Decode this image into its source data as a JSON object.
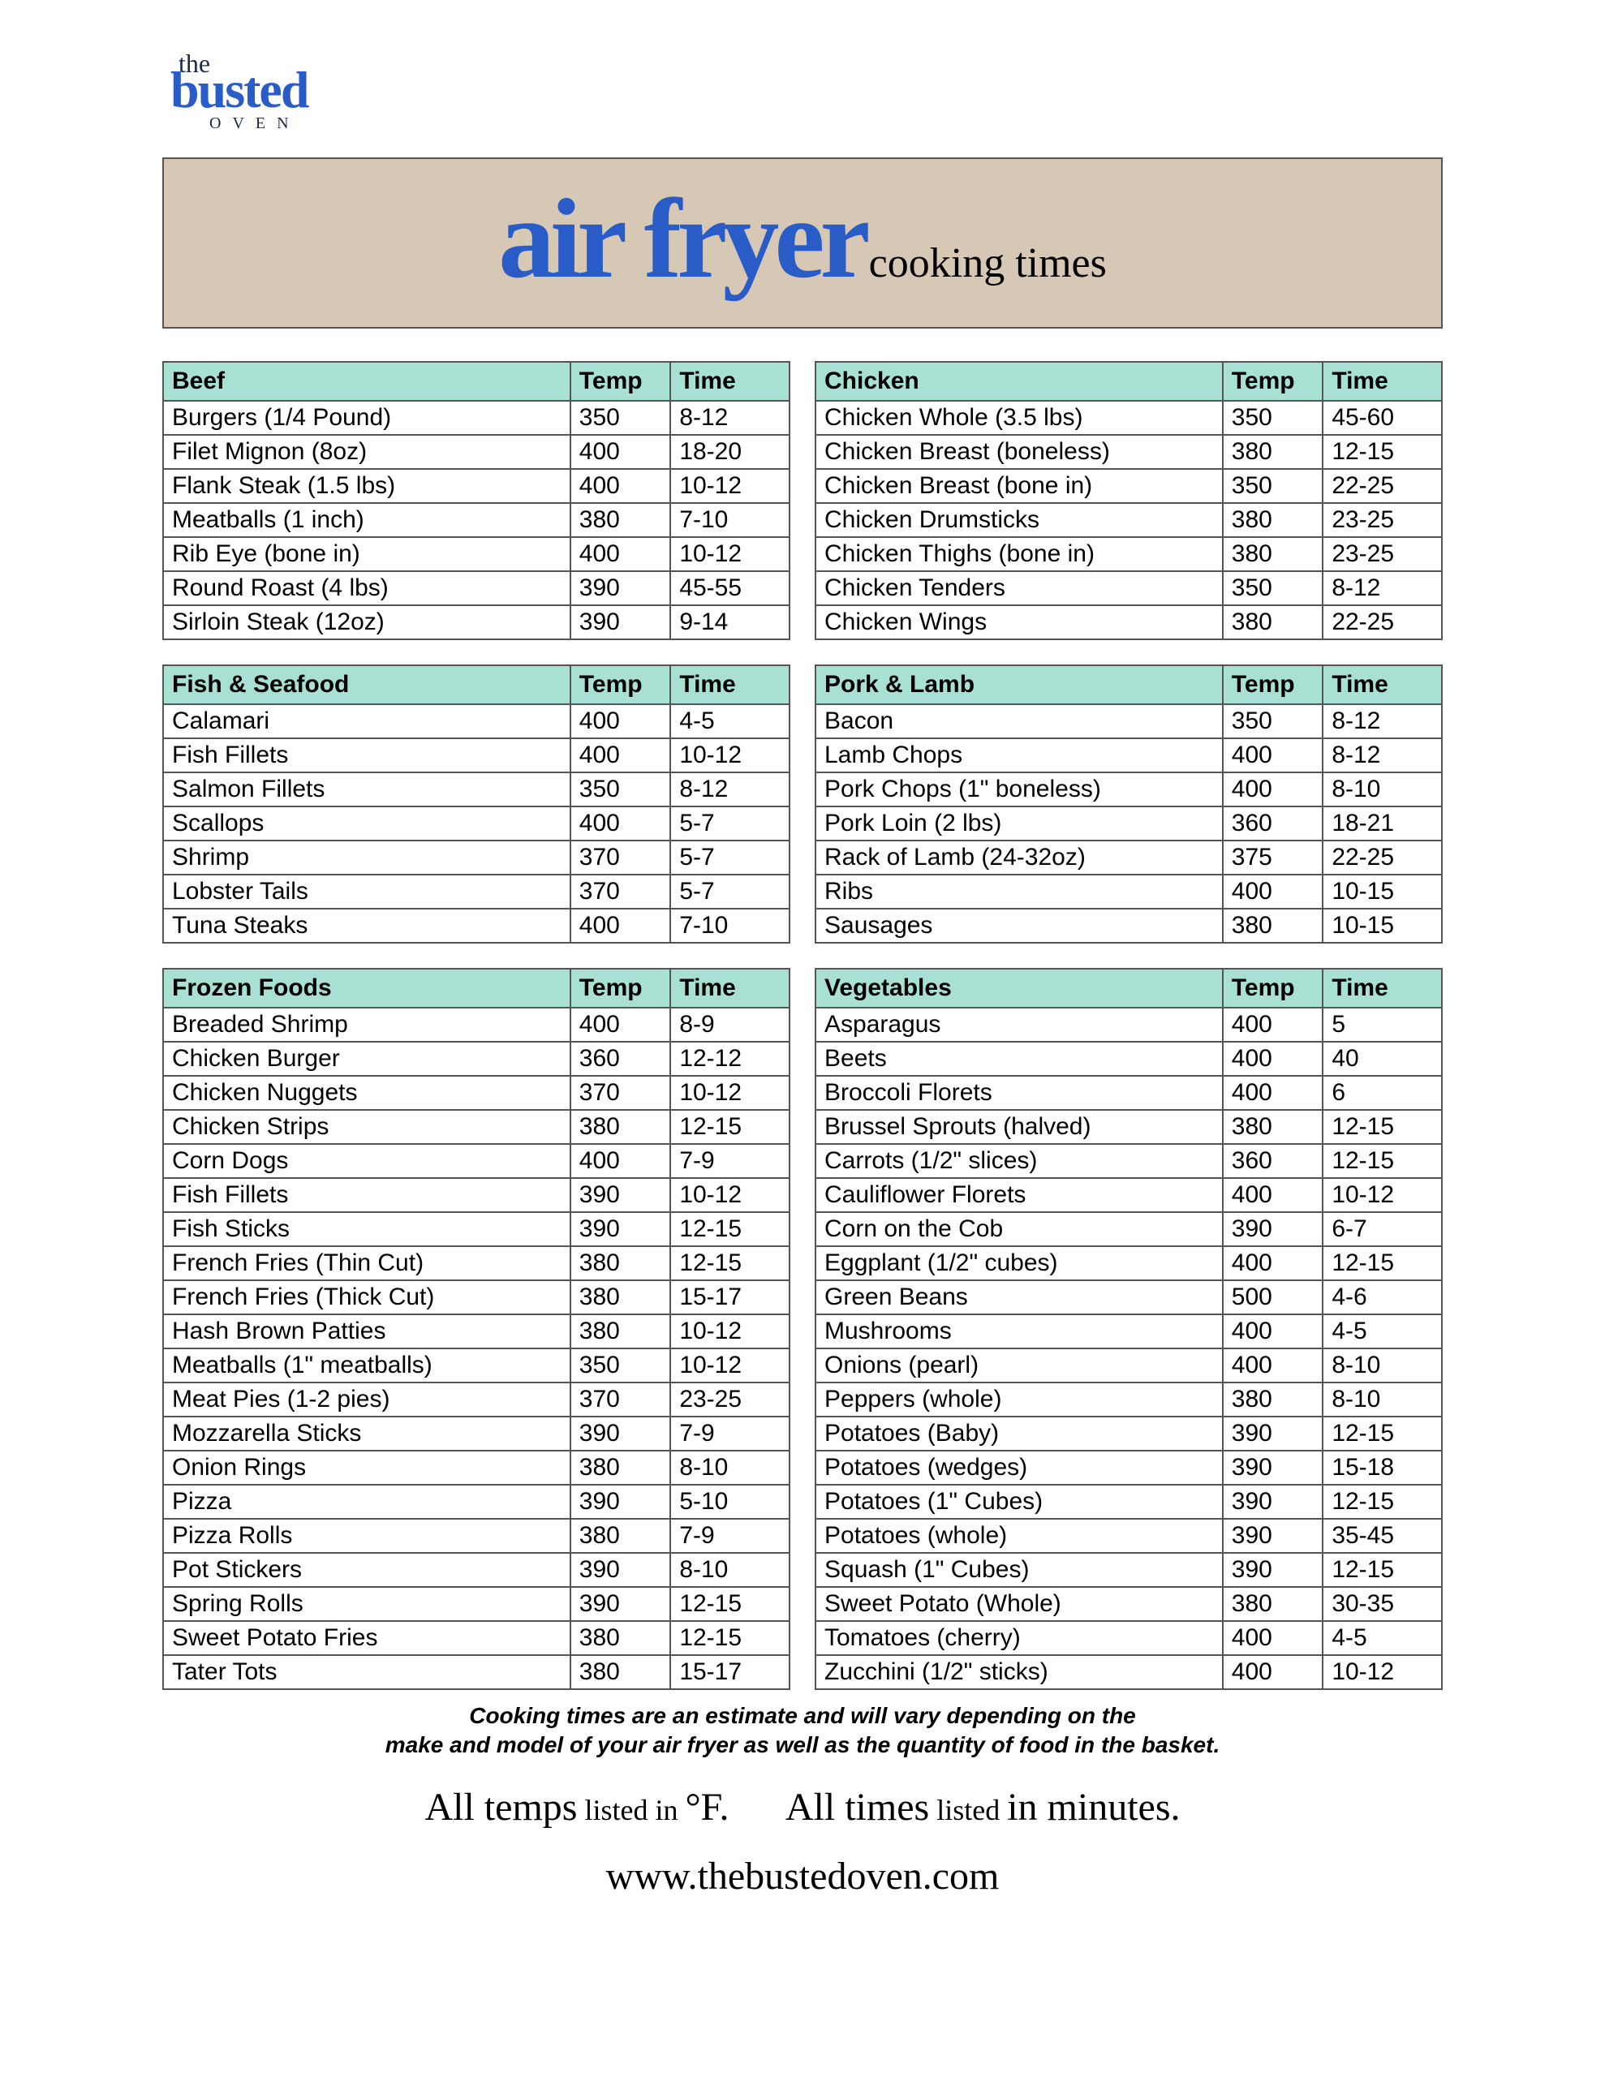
{
  "logo": {
    "the": "the",
    "busted": "busted",
    "oven": "OVEN"
  },
  "title": {
    "main": "air fryer",
    "sub": "cooking times"
  },
  "headers": {
    "temp": "Temp",
    "time": "Time"
  },
  "tables": [
    {
      "category": "Beef",
      "rows": [
        {
          "item": "Burgers (1/4 Pound)",
          "temp": "350",
          "time": "8-12"
        },
        {
          "item": "Filet Mignon (8oz)",
          "temp": "400",
          "time": "18-20"
        },
        {
          "item": "Flank Steak (1.5 lbs)",
          "temp": "400",
          "time": "10-12"
        },
        {
          "item": "Meatballs (1 inch)",
          "temp": "380",
          "time": "7-10"
        },
        {
          "item": "Rib Eye (bone in)",
          "temp": "400",
          "time": "10-12"
        },
        {
          "item": "Round Roast (4 lbs)",
          "temp": "390",
          "time": "45-55"
        },
        {
          "item": "Sirloin Steak (12oz)",
          "temp": "390",
          "time": "9-14"
        }
      ]
    },
    {
      "category": "Chicken",
      "rows": [
        {
          "item": "Chicken Whole (3.5 lbs)",
          "temp": "350",
          "time": "45-60"
        },
        {
          "item": "Chicken Breast (boneless)",
          "temp": "380",
          "time": "12-15"
        },
        {
          "item": "Chicken Breast (bone in)",
          "temp": "350",
          "time": "22-25"
        },
        {
          "item": "Chicken Drumsticks",
          "temp": "380",
          "time": "23-25"
        },
        {
          "item": "Chicken Thighs (bone in)",
          "temp": "380",
          "time": "23-25"
        },
        {
          "item": "Chicken Tenders",
          "temp": "350",
          "time": "8-12"
        },
        {
          "item": "Chicken Wings",
          "temp": "380",
          "time": "22-25"
        }
      ]
    },
    {
      "category": "Fish & Seafood",
      "rows": [
        {
          "item": "Calamari",
          "temp": "400",
          "time": "4-5"
        },
        {
          "item": "Fish Fillets",
          "temp": "400",
          "time": "10-12"
        },
        {
          "item": "Salmon Fillets",
          "temp": "350",
          "time": "8-12"
        },
        {
          "item": "Scallops",
          "temp": "400",
          "time": "5-7"
        },
        {
          "item": "Shrimp",
          "temp": "370",
          "time": "5-7"
        },
        {
          "item": "Lobster Tails",
          "temp": "370",
          "time": "5-7"
        },
        {
          "item": "Tuna Steaks",
          "temp": "400",
          "time": "7-10"
        }
      ]
    },
    {
      "category": "Pork & Lamb",
      "rows": [
        {
          "item": "Bacon",
          "temp": "350",
          "time": "8-12"
        },
        {
          "item": "Lamb Chops",
          "temp": "400",
          "time": "8-12"
        },
        {
          "item": "Pork Chops (1\" boneless)",
          "temp": "400",
          "time": "8-10"
        },
        {
          "item": "Pork Loin (2 lbs)",
          "temp": "360",
          "time": "18-21"
        },
        {
          "item": "Rack of Lamb (24-32oz)",
          "temp": "375",
          "time": "22-25"
        },
        {
          "item": "Ribs",
          "temp": "400",
          "time": "10-15"
        },
        {
          "item": "Sausages",
          "temp": "380",
          "time": "10-15"
        }
      ]
    },
    {
      "category": "Frozen Foods",
      "rows": [
        {
          "item": "Breaded Shrimp",
          "temp": "400",
          "time": "8-9"
        },
        {
          "item": "Chicken Burger",
          "temp": "360",
          "time": "12-12"
        },
        {
          "item": "Chicken Nuggets",
          "temp": "370",
          "time": "10-12"
        },
        {
          "item": "Chicken Strips",
          "temp": "380",
          "time": "12-15"
        },
        {
          "item": "Corn Dogs",
          "temp": "400",
          "time": "7-9"
        },
        {
          "item": "Fish Fillets",
          "temp": "390",
          "time": "10-12"
        },
        {
          "item": "Fish Sticks",
          "temp": "390",
          "time": "12-15"
        },
        {
          "item": "French Fries (Thin Cut)",
          "temp": "380",
          "time": "12-15"
        },
        {
          "item": "French Fries (Thick Cut)",
          "temp": "380",
          "time": "15-17"
        },
        {
          "item": "Hash Brown Patties",
          "temp": "380",
          "time": "10-12"
        },
        {
          "item": "Meatballs (1\" meatballs)",
          "temp": "350",
          "time": "10-12"
        },
        {
          "item": "Meat Pies (1-2 pies)",
          "temp": "370",
          "time": "23-25"
        },
        {
          "item": "Mozzarella Sticks",
          "temp": "390",
          "time": "7-9"
        },
        {
          "item": "Onion Rings",
          "temp": "380",
          "time": "8-10"
        },
        {
          "item": "Pizza",
          "temp": "390",
          "time": "5-10"
        },
        {
          "item": "Pizza Rolls",
          "temp": "380",
          "time": "7-9"
        },
        {
          "item": "Pot Stickers",
          "temp": "390",
          "time": "8-10"
        },
        {
          "item": "Spring Rolls",
          "temp": "390",
          "time": "12-15"
        },
        {
          "item": "Sweet Potato Fries",
          "temp": "380",
          "time": "12-15"
        },
        {
          "item": "Tater Tots",
          "temp": "380",
          "time": "15-17"
        }
      ]
    },
    {
      "category": "Vegetables",
      "rows": [
        {
          "item": "Asparagus",
          "temp": "400",
          "time": "5"
        },
        {
          "item": "Beets",
          "temp": "400",
          "time": "40"
        },
        {
          "item": "Broccoli Florets",
          "temp": "400",
          "time": "6"
        },
        {
          "item": "Brussel Sprouts (halved)",
          "temp": "380",
          "time": "12-15"
        },
        {
          "item": "Carrots (1/2\" slices)",
          "temp": "360",
          "time": "12-15"
        },
        {
          "item": "Cauliflower Florets",
          "temp": "400",
          "time": "10-12"
        },
        {
          "item": "Corn on the Cob",
          "temp": "390",
          "time": "6-7"
        },
        {
          "item": "Eggplant (1/2\" cubes)",
          "temp": "400",
          "time": "12-15"
        },
        {
          "item": "Green Beans",
          "temp": "500",
          "time": "4-6"
        },
        {
          "item": "Mushrooms",
          "temp": "400",
          "time": "4-5"
        },
        {
          "item": "Onions (pearl)",
          "temp": "400",
          "time": "8-10"
        },
        {
          "item": "Peppers (whole)",
          "temp": "380",
          "time": "8-10"
        },
        {
          "item": "Potatoes (Baby)",
          "temp": "390",
          "time": "12-15"
        },
        {
          "item": "Potatoes (wedges)",
          "temp": "390",
          "time": "15-18"
        },
        {
          "item": "Potatoes (1\" Cubes)",
          "temp": "390",
          "time": "12-15"
        },
        {
          "item": "Potatoes (whole)",
          "temp": "390",
          "time": "35-45"
        },
        {
          "item": "Squash (1\" Cubes)",
          "temp": "390",
          "time": "12-15"
        },
        {
          "item": "Sweet Potato (Whole)",
          "temp": "380",
          "time": "30-35"
        },
        {
          "item": "Tomatoes (cherry)",
          "temp": "400",
          "time": "4-5"
        },
        {
          "item": "Zucchini (1/2\" sticks)",
          "temp": "400",
          "time": "10-12"
        }
      ]
    }
  ],
  "disclaimer": {
    "line1": "Cooking times are an estimate and will vary depending on the",
    "line2": "make and model of your air fryer as well as the quantity of food in the basket."
  },
  "footer": {
    "temps_a": "All temps",
    "temps_b": " listed in ",
    "temps_c": "°F.",
    "times_a": "All times",
    "times_b": " listed ",
    "times_c": "in minutes.",
    "url": "www.thebustedoven.com"
  }
}
